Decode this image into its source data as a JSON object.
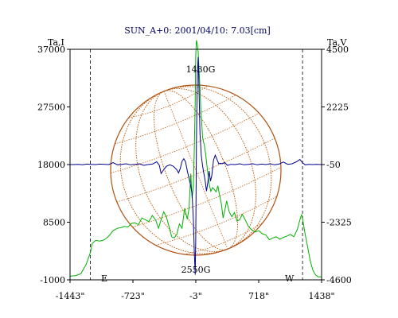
{
  "chart_data": {
    "type": "line",
    "title": "SUN_A+0: 2001/04/10: 7.03[cm]",
    "left_axis_label": "Ta,I",
    "right_axis_label": "Ta,V",
    "xlim": [
      -1443,
      1438
    ],
    "x_ticks": [
      "-1443\"",
      "-723\"",
      "-3\"",
      "718\"",
      "1438\""
    ],
    "x_tick_values": [
      -1443,
      -723,
      -3,
      718,
      1438
    ],
    "ylim_left": [
      -1000,
      37000
    ],
    "ylim_right": [
      -4600,
      4500
    ],
    "left_ticks": [
      "37000",
      "27500",
      "18000",
      "8500",
      "-1000"
    ],
    "left_tick_values": [
      37000,
      27500,
      18000,
      8500,
      -1000
    ],
    "right_ticks": [
      "4500",
      "2225",
      "-50",
      "-2325",
      "-4600"
    ],
    "right_tick_values": [
      4500,
      2225,
      -50,
      -2325,
      -4600
    ],
    "limb_markers": {
      "east_label": "E",
      "west_label": "W",
      "east_x": -1210,
      "west_x": 1220
    },
    "annotations": [
      {
        "text": "1430G",
        "x": 10,
        "position": "top"
      },
      {
        "text": "2550G",
        "x": -3,
        "position": "bottom"
      }
    ],
    "colors": {
      "intensity": "#00b000",
      "polarization": "#000090",
      "disk": "#b05010",
      "grid": "#c06010",
      "title": "#000060"
    },
    "series": [
      {
        "name": "Ta,I",
        "axis": "left",
        "x": [
          -1443,
          -1380,
          -1320,
          -1260,
          -1210,
          -1190,
          -1150,
          -1100,
          -1050,
          -1000,
          -950,
          -900,
          -860,
          -820,
          -780,
          -740,
          -700,
          -660,
          -620,
          -580,
          -540,
          -500,
          -460,
          -430,
          -400,
          -370,
          -340,
          -310,
          -280,
          -250,
          -220,
          -190,
          -160,
          -130,
          -100,
          -80,
          -60,
          -45,
          -30,
          -20,
          -10,
          -3,
          5,
          15,
          25,
          35,
          45,
          55,
          65,
          75,
          85,
          95,
          110,
          130,
          150,
          170,
          190,
          210,
          230,
          250,
          270,
          290,
          310,
          330,
          350,
          380,
          410,
          440,
          470,
          500,
          530,
          560,
          600,
          640,
          680,
          720,
          760,
          800,
          840,
          880,
          920,
          960,
          1000,
          1040,
          1080,
          1120,
          1160,
          1190,
          1210,
          1230,
          1250,
          1270,
          1290,
          1310,
          1340,
          1370,
          1400,
          1438
        ],
        "values": [
          -400,
          -300,
          0,
          1500,
          3500,
          5000,
          5500,
          5400,
          5600,
          6200,
          7100,
          7500,
          7600,
          7800,
          7700,
          8300,
          8400,
          8100,
          9200,
          8900,
          8600,
          9600,
          8800,
          7500,
          8900,
          10200,
          9400,
          7800,
          6100,
          5900,
          6500,
          8200,
          7500,
          10800,
          9000,
          10800,
          16500,
          12500,
          14500,
          20500,
          28000,
          36000,
          38500,
          37800,
          36500,
          33500,
          30500,
          27000,
          25000,
          22500,
          21800,
          21200,
          19800,
          17200,
          14800,
          13600,
          14200,
          13900,
          13500,
          14500,
          12900,
          11500,
          9200,
          10500,
          12000,
          10200,
          9400,
          10100,
          8700,
          8900,
          9800,
          9000,
          7800,
          7200,
          6900,
          7100,
          6600,
          6400,
          5600,
          5900,
          6100,
          5700,
          6000,
          6200,
          6500,
          6100,
          7300,
          8900,
          9800,
          8200,
          6500,
          5000,
          3500,
          2000,
          500,
          -200,
          -500,
          -500
        ]
      },
      {
        "name": "Ta,V",
        "axis": "right",
        "x": [
          -1443,
          -1400,
          -1350,
          -1300,
          -1250,
          -1210,
          -1150,
          -1100,
          -1000,
          -950,
          -900,
          -850,
          -800,
          -750,
          -700,
          -650,
          -600,
          -550,
          -500,
          -450,
          -420,
          -400,
          -370,
          -340,
          -300,
          -260,
          -220,
          -200,
          -180,
          -160,
          -140,
          -120,
          -100,
          -80,
          -60,
          -45,
          -30,
          -20,
          -10,
          -3,
          5,
          15,
          25,
          35,
          45,
          60,
          75,
          90,
          105,
          120,
          135,
          150,
          165,
          180,
          200,
          220,
          240,
          260,
          280,
          300,
          330,
          360,
          400,
          450,
          500,
          550,
          600,
          650,
          700,
          750,
          800,
          850,
          900,
          950,
          1000,
          1050,
          1100,
          1150,
          1190,
          1220,
          1250,
          1290,
          1330,
          1380,
          1438
        ],
        "values": [
          -50,
          -50,
          -40,
          -60,
          -30,
          -40,
          -50,
          -30,
          -50,
          30,
          -60,
          -40,
          -20,
          -60,
          -40,
          -20,
          -80,
          -50,
          -30,
          60,
          -80,
          -400,
          -250,
          -120,
          -60,
          -120,
          -250,
          -380,
          -200,
          80,
          180,
          60,
          -300,
          -600,
          -900,
          -1200,
          -2300,
          -3500,
          -4400,
          -3000,
          900,
          3500,
          4200,
          2800,
          1200,
          300,
          -100,
          -400,
          -700,
          -1100,
          -750,
          -300,
          -700,
          -500,
          120,
          320,
          150,
          -20,
          0,
          -20,
          30,
          -80,
          -40,
          -50,
          -20,
          -60,
          -40,
          -20,
          -60,
          -30,
          -50,
          -20,
          -60,
          -30,
          50,
          -40,
          -20,
          60,
          150,
          20,
          -60,
          -40,
          -50,
          -40,
          -50
        ]
      }
    ]
  }
}
